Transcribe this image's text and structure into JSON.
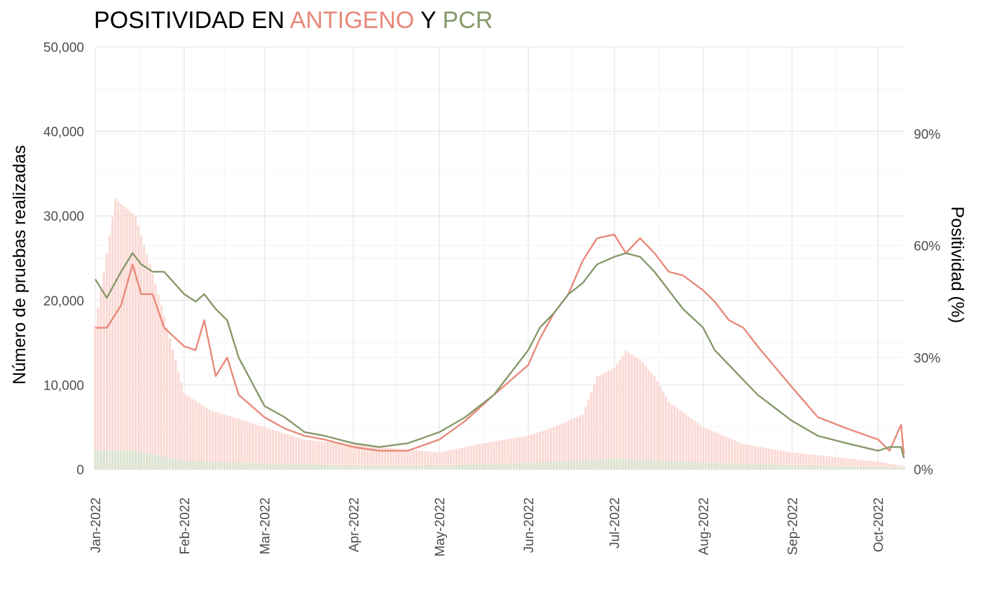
{
  "chart_data": {
    "type": "bar+line",
    "title_parts": [
      {
        "text": "POSITIVIDAD EN ",
        "color": "#000000"
      },
      {
        "text": "ANTIGENO",
        "color": "#E8897A"
      },
      {
        "text": " Y ",
        "color": "#000000"
      },
      {
        "text": "PCR",
        "color": "#86996A"
      }
    ],
    "ylabel_left": "Número de pruebas realizadas",
    "ylabel_right": "Positividad (%)",
    "x_range": [
      "2022-01-01",
      "2022-10-10"
    ],
    "x_ticks": [
      {
        "date": "2022-01-01",
        "label": "Jan-2022"
      },
      {
        "date": "2022-02-01",
        "label": "Feb-2022"
      },
      {
        "date": "2022-03-01",
        "label": "Mar-2022"
      },
      {
        "date": "2022-04-01",
        "label": "Apr-2022"
      },
      {
        "date": "2022-05-01",
        "label": "May-2022"
      },
      {
        "date": "2022-06-01",
        "label": "Jun-2022"
      },
      {
        "date": "2022-07-01",
        "label": "Jul-2022"
      },
      {
        "date": "2022-08-01",
        "label": "Aug-2022"
      },
      {
        "date": "2022-09-01",
        "label": "Sep-2022"
      },
      {
        "date": "2022-10-01",
        "label": "Oct-2022"
      }
    ],
    "y_left": {
      "range": [
        0,
        50000
      ],
      "ticks": [
        {
          "value": 0,
          "label": "0"
        },
        {
          "value": 10000,
          "label": "10,000"
        },
        {
          "value": 20000,
          "label": "20,000"
        },
        {
          "value": 30000,
          "label": "30,000"
        },
        {
          "value": 40000,
          "label": "40,000"
        },
        {
          "value": 50000,
          "label": "50,000"
        }
      ]
    },
    "y_right": {
      "range": [
        0,
        113.3
      ],
      "ticks": [
        {
          "value": 0,
          "label": "0%"
        },
        {
          "value": 30,
          "label": "30%"
        },
        {
          "value": 60,
          "label": "60%"
        },
        {
          "value": 90,
          "label": "90%"
        }
      ]
    },
    "grid": true,
    "legend": "none",
    "colors": {
      "antigeno": "#E8897A",
      "pcr": "#86996A",
      "antigeno_bar": "#FBDAD5",
      "pcr_bar": "#DCE4D2"
    },
    "bars_antigeno": {
      "dates": [
        "2022-01-01",
        "2022-01-08",
        "2022-01-15",
        "2022-01-22",
        "2022-02-01",
        "2022-02-10",
        "2022-02-20",
        "2022-03-01",
        "2022-03-15",
        "2022-04-01",
        "2022-04-15",
        "2022-05-01",
        "2022-05-15",
        "2022-06-01",
        "2022-06-10",
        "2022-06-20",
        "2022-06-25",
        "2022-07-01",
        "2022-07-05",
        "2022-07-10",
        "2022-07-15",
        "2022-07-20",
        "2022-08-01",
        "2022-08-15",
        "2022-09-01",
        "2022-09-15",
        "2022-10-01",
        "2022-10-10"
      ],
      "values": [
        17000,
        32000,
        30000,
        22000,
        9000,
        7000,
        6000,
        5000,
        3500,
        3000,
        2500,
        2000,
        3000,
        4000,
        5000,
        6500,
        11000,
        12000,
        14000,
        13000,
        11000,
        8000,
        5000,
        3000,
        2000,
        1500,
        900,
        400
      ]
    },
    "bars_pcr": {
      "dates": [
        "2022-01-01",
        "2022-01-15",
        "2022-02-01",
        "2022-03-01",
        "2022-04-01",
        "2022-05-01",
        "2022-06-01",
        "2022-07-01",
        "2022-08-01",
        "2022-09-01",
        "2022-10-10"
      ],
      "values": [
        2300,
        2200,
        1000,
        700,
        450,
        450,
        750,
        1300,
        800,
        500,
        200
      ]
    },
    "line_antigeno": {
      "dates": [
        "2022-01-01",
        "2022-01-05",
        "2022-01-10",
        "2022-01-14",
        "2022-01-17",
        "2022-01-21",
        "2022-01-25",
        "2022-02-01",
        "2022-02-05",
        "2022-02-08",
        "2022-02-12",
        "2022-02-16",
        "2022-02-20",
        "2022-03-01",
        "2022-03-08",
        "2022-03-15",
        "2022-03-22",
        "2022-04-01",
        "2022-04-10",
        "2022-04-20",
        "2022-05-01",
        "2022-05-10",
        "2022-05-20",
        "2022-06-01",
        "2022-06-05",
        "2022-06-10",
        "2022-06-15",
        "2022-06-20",
        "2022-06-25",
        "2022-07-01",
        "2022-07-05",
        "2022-07-10",
        "2022-07-15",
        "2022-07-20",
        "2022-07-25",
        "2022-08-01",
        "2022-08-05",
        "2022-08-10",
        "2022-08-15",
        "2022-08-20",
        "2022-09-01",
        "2022-09-10",
        "2022-09-20",
        "2022-10-01",
        "2022-10-05",
        "2022-10-09",
        "2022-10-10"
      ],
      "values": [
        38,
        38,
        44,
        55,
        47,
        47,
        38,
        33,
        32,
        40,
        25,
        30,
        20,
        14,
        11,
        9,
        8,
        6,
        5,
        5,
        8,
        13,
        20,
        28,
        35,
        42,
        47,
        56,
        62,
        63,
        58,
        62,
        58,
        53,
        52,
        48,
        45,
        40,
        38,
        33,
        22,
        14,
        11,
        8,
        5,
        12,
        4
      ]
    },
    "line_pcr": {
      "dates": [
        "2022-01-01",
        "2022-01-05",
        "2022-01-10",
        "2022-01-14",
        "2022-01-17",
        "2022-01-21",
        "2022-01-25",
        "2022-02-01",
        "2022-02-05",
        "2022-02-08",
        "2022-02-12",
        "2022-02-16",
        "2022-02-20",
        "2022-03-01",
        "2022-03-08",
        "2022-03-15",
        "2022-03-22",
        "2022-04-01",
        "2022-04-10",
        "2022-04-20",
        "2022-05-01",
        "2022-05-10",
        "2022-05-20",
        "2022-06-01",
        "2022-06-05",
        "2022-06-10",
        "2022-06-15",
        "2022-06-20",
        "2022-06-25",
        "2022-07-01",
        "2022-07-05",
        "2022-07-10",
        "2022-07-15",
        "2022-07-20",
        "2022-07-25",
        "2022-08-01",
        "2022-08-05",
        "2022-08-10",
        "2022-08-15",
        "2022-08-20",
        "2022-09-01",
        "2022-09-10",
        "2022-09-20",
        "2022-10-01",
        "2022-10-05",
        "2022-10-09",
        "2022-10-10"
      ],
      "values": [
        51,
        46,
        53,
        58,
        55,
        53,
        53,
        47,
        45,
        47,
        43,
        40,
        30,
        17,
        14,
        10,
        9,
        7,
        6,
        7,
        10,
        14,
        20,
        32,
        38,
        42,
        47,
        50,
        55,
        57,
        58,
        57,
        53,
        48,
        43,
        38,
        32,
        28,
        24,
        20,
        13,
        9,
        7,
        5,
        6,
        6,
        3
      ]
    }
  }
}
